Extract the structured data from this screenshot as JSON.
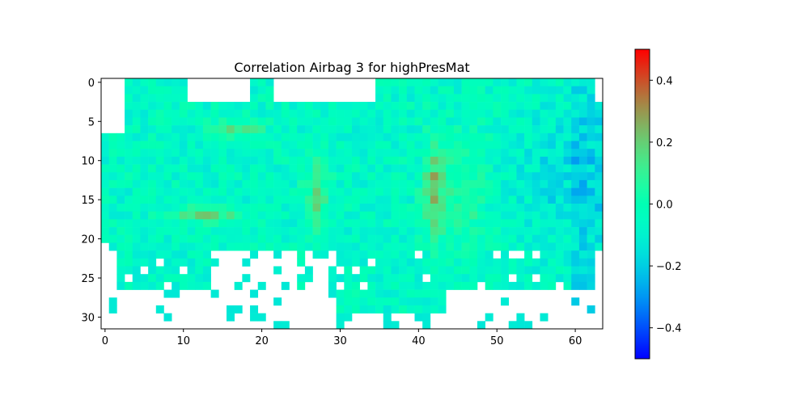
{
  "chart_data": {
    "type": "heatmap",
    "title": "Correlation Airbag 3 for highPresMat",
    "xlabel": "",
    "ylabel": "",
    "grid": false,
    "colormap": "rainbow",
    "clim": [
      -0.5,
      0.5
    ],
    "xlim": [
      -0.5,
      63.5
    ],
    "ylim": [
      31.5,
      -0.5
    ],
    "x_ticks": [
      0,
      10,
      20,
      30,
      40,
      50,
      60
    ],
    "y_ticks": [
      0,
      5,
      10,
      15,
      20,
      25,
      30
    ],
    "colorbar_ticks": [
      0.4,
      0.2,
      0.0,
      -0.2,
      -0.4
    ],
    "colorbar_tick_labels": [
      "0.4",
      "0.2",
      "0.0",
      "−0.2",
      "−0.4"
    ],
    "grid_shape": [
      32,
      64
    ],
    "missing_value_color": "#ffffff"
  }
}
